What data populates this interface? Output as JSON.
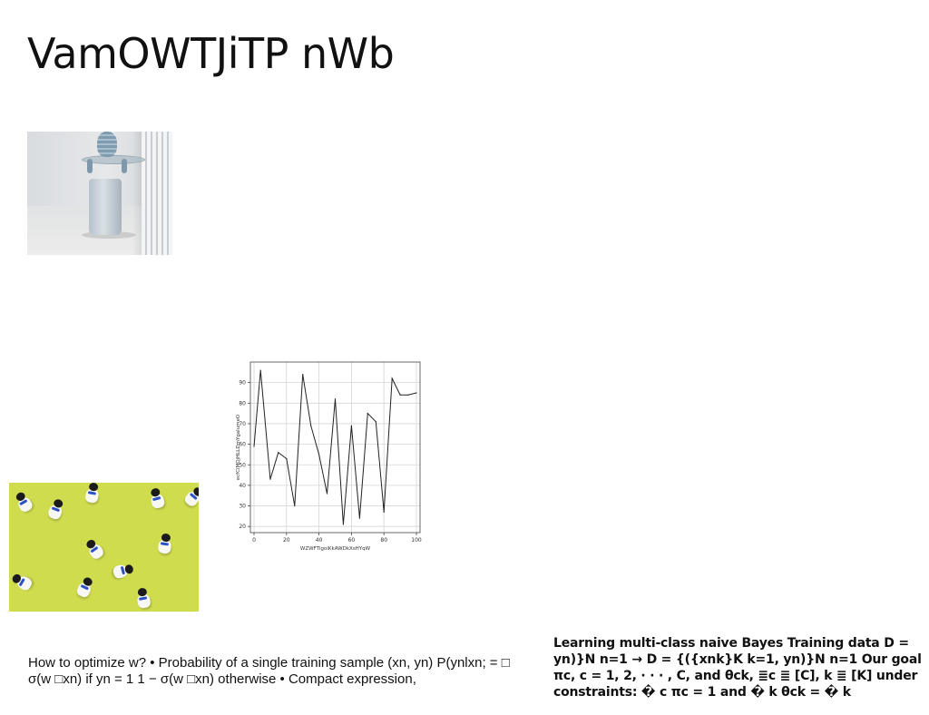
{
  "slide": {
    "title": "VamOWTJiTP nWb"
  },
  "images": {
    "interior": {
      "description_icon": "photo-icon"
    },
    "figurines": {
      "description_icon": "photo-icon"
    }
  },
  "text": {
    "left_paragraph": "How to optimize w? • Probability of a single training sample (xn, yn) P(ynlxn; = □ σ(w □xn) if yn = 1 1 − σ(w □xn) otherwise • Compact expression,",
    "right_paragraph": "Learning multi-class naive Bayes Training data D = yn)}N n=1 → D = {({xnk}K k=1, yn)}N n=1 Our goal πc, c = 1, 2, · · · , C, and θck, ≣c ≣ [C], k ≣ [K] under constraints: � c πc = 1 and � k θck = � k"
  },
  "chart_data": {
    "type": "line",
    "title": "",
    "xlabel": "WZWFTlgoiKkAWDkXsHYqW",
    "ylabel": "ecfCiMQjHLLDmYgalumeO",
    "xlim": [
      0,
      100
    ],
    "ylim": [
      17,
      100
    ],
    "x_ticks": [
      0,
      20,
      40,
      60,
      80,
      100
    ],
    "y_ticks": [
      20,
      30,
      40,
      50,
      60,
      70,
      80,
      90
    ],
    "grid": true,
    "series": [
      {
        "color": "#222222",
        "x": [
          0,
          4,
          10,
          15,
          20,
          25,
          30,
          35,
          40,
          45,
          50,
          55,
          60,
          65,
          70,
          75,
          80,
          85,
          90,
          95,
          100
        ],
        "values": [
          59,
          96,
          43,
          56,
          53,
          30,
          94,
          69,
          55,
          36,
          82,
          21,
          69,
          24,
          75,
          71,
          27,
          92,
          84,
          84,
          85
        ]
      }
    ]
  }
}
